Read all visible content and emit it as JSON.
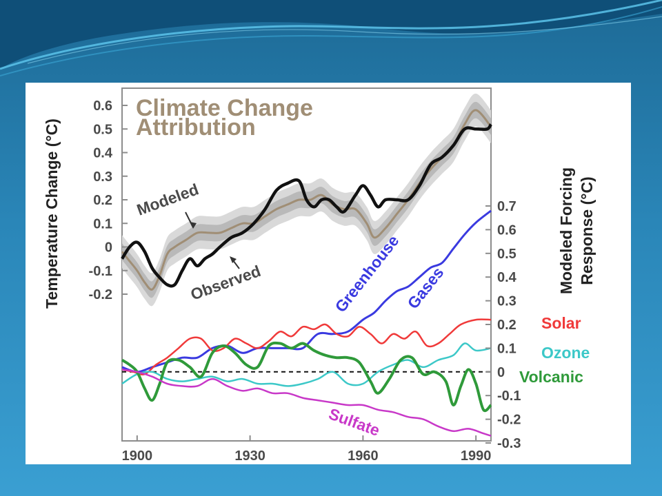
{
  "colors": {
    "observed": "#111111",
    "modeled": "#a08e75",
    "modeled_band_outer": "#d9d9d9",
    "modeled_band_inner": "#b9b9b9",
    "greenhouse": "#3a3ae0",
    "solar": "#f03a3a",
    "ozone": "#3cc8c8",
    "volcanic": "#2f9a3a",
    "sulfate": "#c838c8",
    "title": "#a08e75"
  },
  "chart_data": {
    "type": "line",
    "title_line1": "Climate Change",
    "title_line2": "Attribution",
    "x_ticks": [
      "1900",
      "1930",
      "1960",
      "1990"
    ],
    "xlim": [
      1896,
      1994
    ],
    "upper_panel": {
      "ylabel": "Temperature Change (°C)",
      "ylim": [
        -0.2,
        0.6
      ],
      "y_ticks": [
        "0.6",
        "0.5",
        "0.4",
        "0.3",
        "0.2",
        "0.1",
        "0",
        "-0.1",
        "-0.2"
      ],
      "annotations": {
        "modeled": "Modeled",
        "observed": "Observed"
      },
      "series": [
        {
          "name": "Modeled",
          "x": [
            1896,
            1898,
            1900,
            1902,
            1904,
            1906,
            1908,
            1910,
            1913,
            1916,
            1919,
            1922,
            1925,
            1928,
            1931,
            1934,
            1937,
            1940,
            1943,
            1946,
            1949,
            1952,
            1955,
            1958,
            1961,
            1963,
            1966,
            1969,
            1972,
            1975,
            1978,
            1981,
            1984,
            1987,
            1990,
            1994
          ],
          "values": [
            -0.02,
            -0.06,
            -0.1,
            -0.15,
            -0.18,
            -0.12,
            -0.03,
            0.0,
            0.03,
            0.06,
            0.06,
            0.06,
            0.08,
            0.1,
            0.1,
            0.13,
            0.16,
            0.18,
            0.2,
            0.2,
            0.22,
            0.18,
            0.16,
            0.16,
            0.1,
            0.04,
            0.08,
            0.14,
            0.2,
            0.27,
            0.33,
            0.38,
            0.43,
            0.52,
            0.58,
            0.51
          ]
        },
        {
          "name": "Observed",
          "x": [
            1896,
            1898,
            1900,
            1902,
            1904,
            1906,
            1908,
            1910,
            1912,
            1914,
            1916,
            1918,
            1920,
            1922,
            1925,
            1928,
            1931,
            1934,
            1937,
            1940,
            1943,
            1945,
            1947,
            1949,
            1951,
            1953,
            1955,
            1958,
            1960,
            1962,
            1964,
            1966,
            1969,
            1972,
            1975,
            1978,
            1981,
            1984,
            1987,
            1990,
            1993,
            1994
          ],
          "values": [
            -0.05,
            0.0,
            0.02,
            -0.02,
            -0.09,
            -0.13,
            -0.16,
            -0.16,
            -0.1,
            -0.05,
            -0.08,
            -0.05,
            -0.03,
            0.0,
            0.04,
            0.06,
            0.1,
            0.16,
            0.24,
            0.27,
            0.28,
            0.2,
            0.17,
            0.2,
            0.2,
            0.17,
            0.15,
            0.22,
            0.26,
            0.22,
            0.17,
            0.2,
            0.2,
            0.2,
            0.26,
            0.35,
            0.38,
            0.43,
            0.5,
            0.5,
            0.5,
            0.52
          ]
        }
      ]
    },
    "lower_panel": {
      "ylabel_line1": "Modeled Forcing",
      "ylabel_line2": "Response (°C)",
      "ylim": [
        -0.3,
        0.7
      ],
      "y_ticks": [
        "0.7",
        "0.6",
        "0.5",
        "0.4",
        "0.3",
        "0.2",
        "0.1",
        "0",
        "-0.1",
        "-0.2",
        "-0.3"
      ],
      "zero_line": "dashed",
      "series": [
        {
          "name": "Greenhouse Gases",
          "label_line1": "Greenhouse",
          "label_line2": "Gases",
          "x": [
            1896,
            1900,
            1904,
            1908,
            1912,
            1916,
            1920,
            1924,
            1928,
            1932,
            1936,
            1940,
            1944,
            1948,
            1952,
            1956,
            1960,
            1963,
            1966,
            1969,
            1972,
            1975,
            1978,
            1981,
            1984,
            1987,
            1990,
            1994
          ],
          "values": [
            0.02,
            0.0,
            0.02,
            0.04,
            0.06,
            0.06,
            0.1,
            0.11,
            0.08,
            0.1,
            0.1,
            0.1,
            0.1,
            0.16,
            0.16,
            0.17,
            0.22,
            0.25,
            0.3,
            0.34,
            0.36,
            0.4,
            0.44,
            0.46,
            0.52,
            0.58,
            0.63,
            0.68
          ]
        },
        {
          "name": "Solar",
          "x": [
            1896,
            1899,
            1902,
            1905,
            1908,
            1911,
            1914,
            1917,
            1920,
            1923,
            1926,
            1929,
            1932,
            1935,
            1938,
            1941,
            1944,
            1947,
            1950,
            1953,
            1956,
            1959,
            1962,
            1965,
            1968,
            1971,
            1974,
            1977,
            1980,
            1983,
            1986,
            1990,
            1994
          ],
          "values": [
            0.01,
            0.0,
            -0.01,
            0.03,
            0.06,
            0.1,
            0.14,
            0.14,
            0.09,
            0.1,
            0.14,
            0.12,
            0.1,
            0.13,
            0.17,
            0.15,
            0.19,
            0.18,
            0.2,
            0.16,
            0.15,
            0.19,
            0.16,
            0.12,
            0.16,
            0.14,
            0.17,
            0.11,
            0.12,
            0.16,
            0.2,
            0.22,
            0.22
          ]
        },
        {
          "name": "Ozone",
          "x": [
            1896,
            1900,
            1904,
            1908,
            1912,
            1916,
            1920,
            1924,
            1928,
            1932,
            1936,
            1940,
            1944,
            1948,
            1952,
            1956,
            1960,
            1964,
            1968,
            1972,
            1976,
            1980,
            1984,
            1987,
            1990,
            1994
          ],
          "values": [
            -0.05,
            -0.01,
            0.0,
            -0.03,
            -0.04,
            -0.03,
            -0.02,
            -0.04,
            -0.03,
            -0.05,
            -0.05,
            -0.06,
            -0.05,
            -0.03,
            0.0,
            -0.05,
            -0.05,
            0.0,
            0.03,
            0.05,
            0.02,
            0.05,
            0.07,
            0.12,
            0.09,
            0.1
          ]
        },
        {
          "name": "Volcanic",
          "x": [
            1896,
            1898,
            1900,
            1902,
            1904,
            1906,
            1908,
            1911,
            1914,
            1917,
            1920,
            1923,
            1926,
            1929,
            1932,
            1935,
            1938,
            1941,
            1944,
            1947,
            1950,
            1953,
            1956,
            1959,
            1962,
            1964,
            1967,
            1970,
            1973,
            1976,
            1979,
            1982,
            1984,
            1986,
            1988,
            1990,
            1992,
            1994
          ],
          "values": [
            0.05,
            0.03,
            0.0,
            -0.07,
            -0.12,
            -0.05,
            0.04,
            0.05,
            0.02,
            -0.02,
            0.08,
            0.11,
            0.08,
            0.03,
            0.02,
            0.11,
            0.12,
            0.1,
            0.12,
            0.09,
            0.07,
            0.06,
            0.06,
            0.04,
            -0.04,
            -0.09,
            -0.03,
            0.05,
            0.06,
            -0.01,
            0.0,
            -0.04,
            -0.14,
            -0.06,
            0.01,
            -0.05,
            -0.16,
            -0.14
          ]
        },
        {
          "name": "Sulfate",
          "x": [
            1896,
            1900,
            1904,
            1908,
            1912,
            1916,
            1920,
            1924,
            1928,
            1932,
            1936,
            1940,
            1944,
            1948,
            1952,
            1956,
            1960,
            1964,
            1968,
            1972,
            1976,
            1980,
            1984,
            1988,
            1992,
            1994
          ],
          "values": [
            0.01,
            0.0,
            -0.02,
            -0.05,
            -0.06,
            -0.06,
            -0.03,
            -0.06,
            -0.08,
            -0.07,
            -0.09,
            -0.09,
            -0.11,
            -0.12,
            -0.13,
            -0.14,
            -0.14,
            -0.16,
            -0.17,
            -0.19,
            -0.2,
            -0.23,
            -0.25,
            -0.24,
            -0.26,
            -0.27
          ]
        }
      ]
    }
  }
}
